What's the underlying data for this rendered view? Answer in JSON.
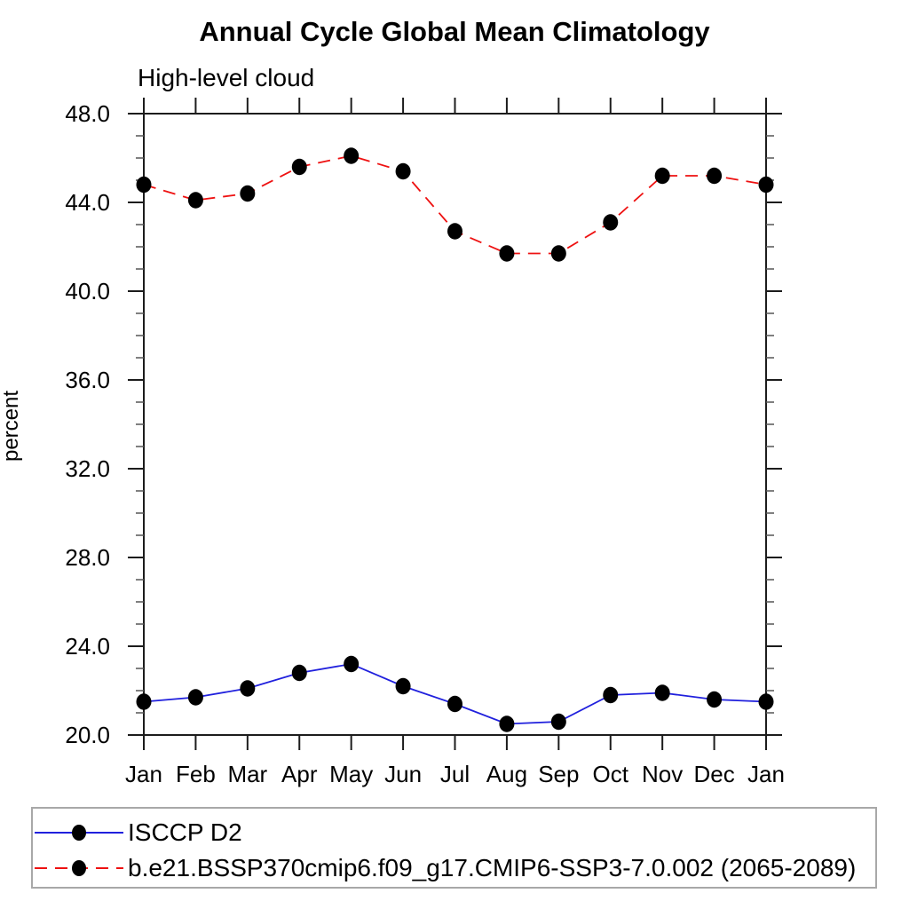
{
  "title": "Annual Cycle Global Mean Climatology",
  "subtitle": "High-level cloud",
  "colors": {
    "background": "#ffffff",
    "axis": "#1c1c1c",
    "minor_tick": "#555555",
    "marker": "#000000",
    "legend_border": "#a8a8a8",
    "series_blue": "#2020dd",
    "series_red": "#ee1111"
  },
  "chart_data": {
    "type": "line",
    "title": "Annual Cycle Global Mean Climatology",
    "subtitle": "High-level cloud",
    "ylabel": "percent",
    "xlabel": "",
    "x": [
      "Jan",
      "Feb",
      "Mar",
      "Apr",
      "May",
      "Jun",
      "Jul",
      "Aug",
      "Sep",
      "Oct",
      "Nov",
      "Dec",
      "Jan"
    ],
    "ylim": [
      20.0,
      48.0
    ],
    "ytick_major_step": 4.0,
    "ytick_minor_step": 1.0,
    "ytick_labels": [
      "20.0",
      "24.0",
      "28.0",
      "32.0",
      "36.0",
      "40.0",
      "44.0",
      "48.0"
    ],
    "grid": "off",
    "legend_position": "bottom-left-box",
    "series": [
      {
        "name": "ISCCP D2",
        "color": "#2020dd",
        "line_style": "solid",
        "marker": "filled-circle",
        "marker_color": "#000000",
        "values": [
          21.5,
          21.7,
          22.1,
          22.8,
          23.2,
          22.2,
          21.4,
          20.5,
          20.6,
          21.8,
          21.9,
          21.6,
          21.5
        ]
      },
      {
        "name": "b.e21.BSSP370cmip6.f09_g17.CMIP6-SSP3-7.0.002 (2065-2089)",
        "color": "#ee1111",
        "line_style": "dashed",
        "marker": "filled-circle",
        "marker_color": "#000000",
        "values": [
          44.8,
          44.1,
          44.4,
          45.6,
          46.1,
          45.4,
          42.7,
          41.7,
          41.7,
          43.1,
          45.2,
          45.2,
          44.8
        ]
      }
    ]
  }
}
